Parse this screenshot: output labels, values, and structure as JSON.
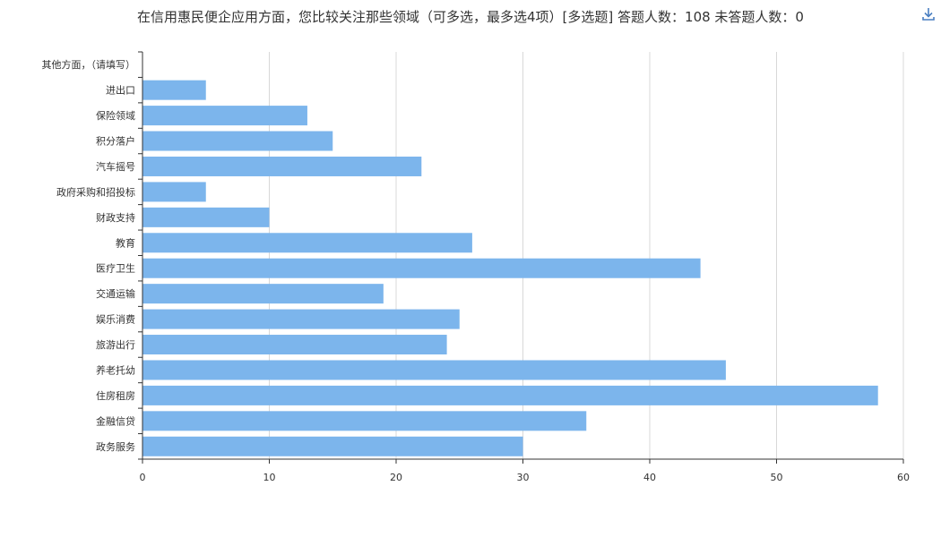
{
  "title": "在信用惠民便企应用方面，您比较关注那些领域（可多选，最多选4项）[多选题]  答题人数：108  未答题人数：0",
  "toolbar": {
    "download_icon": "download-icon"
  },
  "colors": {
    "bar": "#7cb5ec",
    "grid": "#d8d8d8",
    "axis": "#333333"
  },
  "chart_data": {
    "type": "bar",
    "orientation": "horizontal",
    "categories": [
      "其他方面，（请填写）",
      "进出口",
      "保险领域",
      "积分落户",
      "汽车摇号",
      "政府采购和招投标",
      "财政支持",
      "教育",
      "医疗卫生",
      "交通运输",
      "娱乐消费",
      "旅游出行",
      "养老托幼",
      "住房租房",
      "金融信贷",
      "政务服务"
    ],
    "values": [
      0,
      5,
      13,
      15,
      22,
      5,
      10,
      26,
      44,
      19,
      25,
      24,
      46,
      58,
      35,
      30
    ],
    "xlim": [
      0,
      60
    ],
    "xticks": [
      0,
      10,
      20,
      30,
      40,
      50,
      60
    ],
    "grid": true,
    "legend": "none"
  }
}
